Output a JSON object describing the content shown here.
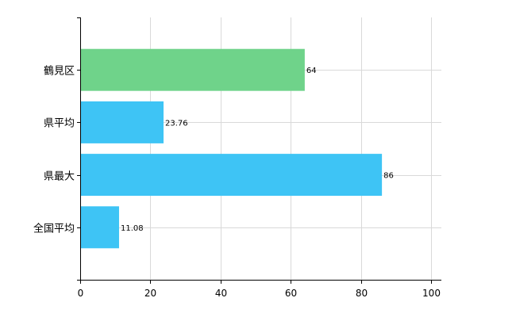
{
  "chart_data": {
    "type": "bar",
    "orientation": "horizontal",
    "categories": [
      "鶴見区",
      "県平均",
      "県最大",
      "全国平均"
    ],
    "values": [
      64,
      23.76,
      86,
      11.08
    ],
    "value_labels": [
      "64",
      "23.76",
      "86",
      "11.08"
    ],
    "bar_colors": [
      "#6fd38a",
      "#3ec4f5",
      "#3ec4f5",
      "#3ec4f5"
    ],
    "title": "",
    "xlabel": "",
    "ylabel": "",
    "xlim": [
      0,
      100
    ],
    "x_ticks": [
      0,
      20,
      40,
      60,
      80,
      100
    ],
    "x_tick_labels": [
      "0",
      "20",
      "40",
      "60",
      "80",
      "100"
    ],
    "grid": true,
    "legend": "none"
  }
}
